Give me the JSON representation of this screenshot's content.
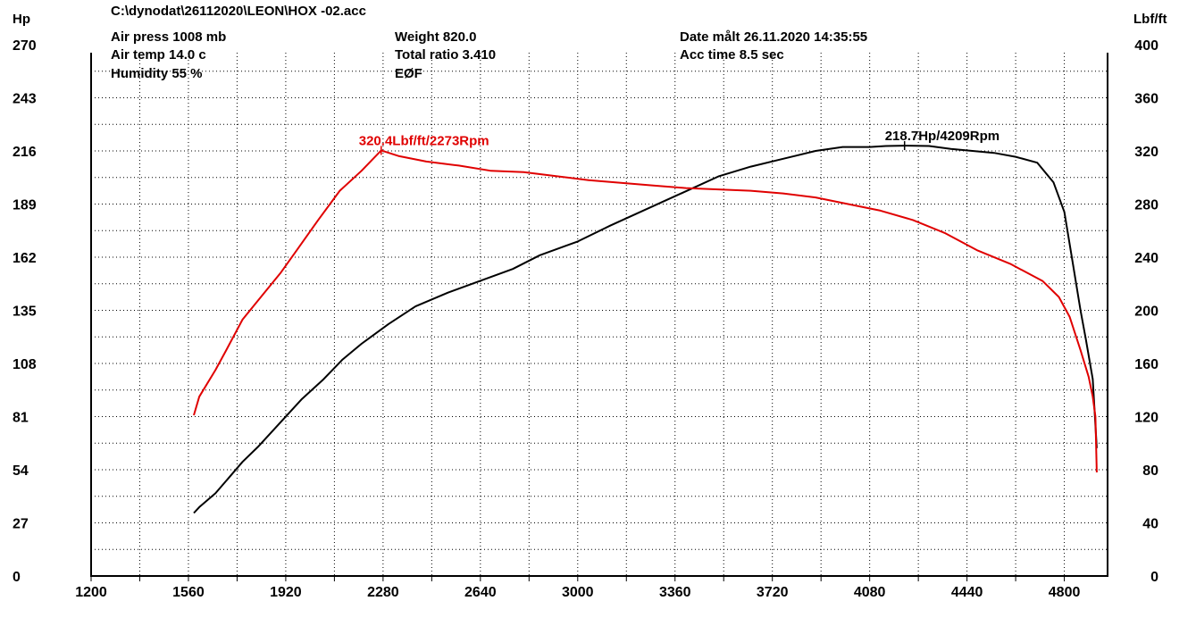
{
  "header": {
    "file": "C:\\dynodat\\26112020\\LEON\\HOX -02.acc",
    "air_press": "Air press  1008 mb",
    "air_temp": "Air temp   14.0 c",
    "humidity": "Humidity    55 %",
    "weight": "Weight    820.0",
    "total_ratio": "Total ratio 3.410",
    "eof": "EØF",
    "date": "Date målt 26.11.2020 14:35:55",
    "acc_time": "Acc time  8.5 sec"
  },
  "chart_data": {
    "type": "line",
    "xlabel": "",
    "ylabel_left": "Hp",
    "ylabel_right": "Lbf/ft",
    "xlim": [
      1200,
      4960
    ],
    "ylim_left": [
      0,
      270
    ],
    "ylim_right": [
      0,
      400
    ],
    "x_ticks": [
      "1200",
      "1560",
      "1920",
      "2280",
      "2640",
      "3000",
      "3360",
      "3720",
      "4080",
      "4440",
      "4800"
    ],
    "y_ticks_left": [
      "0",
      "27",
      "54",
      "81",
      "108",
      "135",
      "162",
      "189",
      "216",
      "243",
      "270"
    ],
    "y_ticks_right": [
      "0",
      "40",
      "80",
      "120",
      "160",
      "200",
      "240",
      "280",
      "320",
      "360",
      "400"
    ],
    "grid": true,
    "series": [
      {
        "name": "Hp",
        "axis": "left",
        "color": "#000000",
        "x": [
          1580,
          1600,
          1660,
          1760,
          1820,
          1900,
          1980,
          2060,
          2130,
          2200,
          2300,
          2400,
          2520,
          2640,
          2760,
          2860,
          3000,
          3120,
          3200,
          3280,
          3360,
          3440,
          3520,
          3640,
          3760,
          3880,
          3980,
          4080,
          4140,
          4209,
          4300,
          4380,
          4460,
          4540,
          4620,
          4700,
          4760,
          4800,
          4830,
          4860,
          4880,
          4905,
          4920
        ],
        "y": [
          32,
          35,
          42,
          58,
          66,
          78,
          90,
          100,
          110,
          118,
          128,
          137,
          144,
          150,
          156,
          163,
          170,
          178,
          183,
          188,
          193,
          198,
          203,
          208,
          212,
          216,
          218,
          218,
          218.5,
          218.7,
          218.5,
          217,
          216,
          215,
          213,
          210,
          200,
          185,
          160,
          135,
          120,
          100,
          65
        ]
      },
      {
        "name": "Lbf/ft",
        "axis": "right",
        "color": "#e00000",
        "x": [
          1580,
          1600,
          1660,
          1700,
          1760,
          1820,
          1900,
          1960,
          2040,
          2120,
          2200,
          2273,
          2340,
          2440,
          2560,
          2680,
          2800,
          2920,
          3040,
          3160,
          3280,
          3400,
          3520,
          3640,
          3760,
          3880,
          4000,
          4120,
          4240,
          4360,
          4480,
          4600,
          4720,
          4780,
          4820,
          4860,
          4890,
          4905,
          4915,
          4920
        ],
        "y": [
          121,
          135,
          155,
          170,
          193,
          208,
          228,
          245,
          268,
          290,
          305,
          320.4,
          316,
          312,
          309,
          305,
          304,
          301,
          298,
          296,
          294,
          292,
          291,
          290,
          288,
          285,
          280,
          275,
          268,
          258,
          245,
          235,
          222,
          210,
          195,
          170,
          150,
          135,
          120,
          78
        ]
      }
    ],
    "annotations": [
      {
        "text": "218.7Hp/4209Rpm",
        "series": "Hp",
        "x": 4209,
        "y": 218.7
      },
      {
        "text": "320.4Lbf/ft/2273Rpm",
        "series": "Lbf/ft",
        "x": 2273,
        "y": 320.4
      }
    ]
  }
}
